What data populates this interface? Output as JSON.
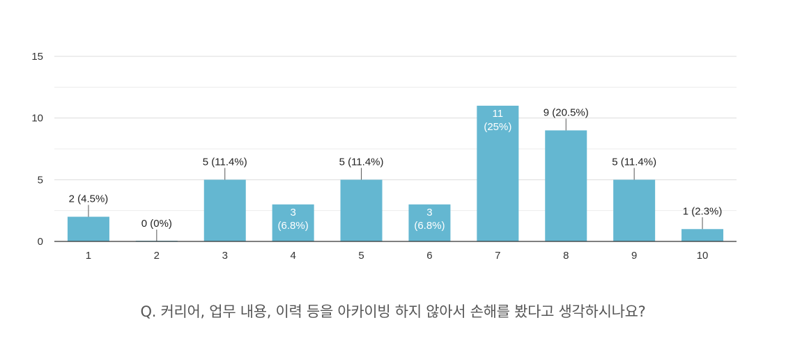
{
  "chart_data": {
    "type": "bar",
    "categories": [
      "1",
      "2",
      "3",
      "4",
      "5",
      "6",
      "7",
      "8",
      "9",
      "10"
    ],
    "values": [
      2,
      0,
      5,
      3,
      5,
      3,
      11,
      9,
      5,
      1
    ],
    "data_labels": [
      "2 (4.5%)",
      "0 (0%)",
      "5 (11.4%)",
      "3\n(6.8%)",
      "5 (11.4%)",
      "3\n(6.8%)",
      "11\n(25%)",
      "9 (20.5%)",
      "5 (11.4%)",
      "1 (2.3%)"
    ],
    "label_inside": [
      false,
      false,
      false,
      true,
      false,
      true,
      true,
      false,
      false,
      false
    ],
    "ylim": [
      0,
      15
    ],
    "yticks": [
      0,
      5,
      10,
      15
    ],
    "grid": true,
    "bar_color": "#64b7d1",
    "title": "",
    "xlabel": "",
    "ylabel": ""
  },
  "caption": "Q. 커리어, 업무 내용, 이력 등을 아카이빙 하지 않아서 손해를 봤다고 생각하시나요?"
}
